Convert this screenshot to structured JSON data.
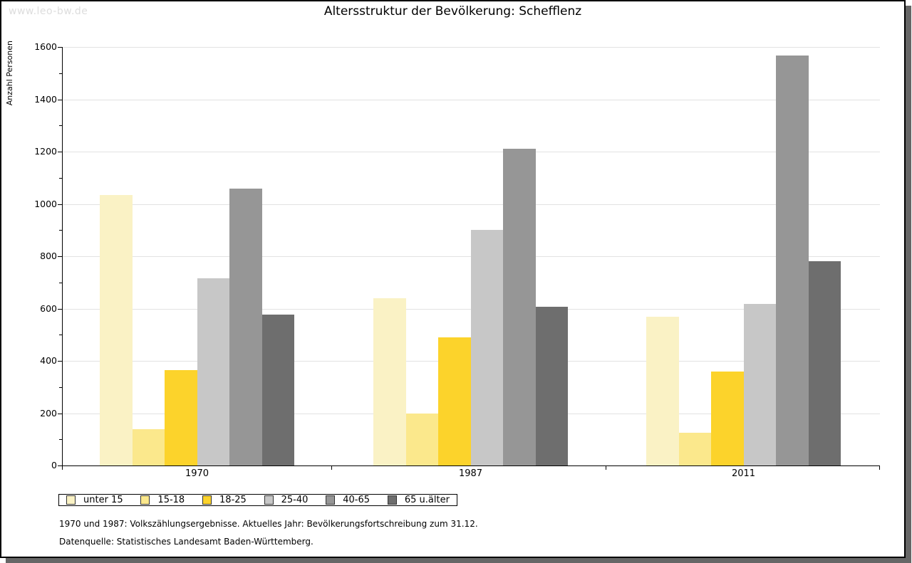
{
  "watermark": "www.leo-bw.de",
  "title": "Altersstruktur der Bevölkerung: Schefflenz",
  "footnotes": {
    "line1": "1970 und 1987: Volkszählungsergebnisse. Aktuelles Jahr: Bevölkerungsfortschreibung zum 31.12.",
    "line2": "Datenquelle: Statistisches Landesamt Baden-Württemberg."
  },
  "colors": {
    "axis": "#000000",
    "gridline": "#e2e2e2",
    "watermark": "#dddddd",
    "frame_border": "#000000",
    "frame_shadow": "#666666"
  },
  "chart_data": {
    "type": "bar",
    "title": "Altersstruktur der Bevölkerung: Schefflenz",
    "xlabel": "",
    "ylabel": "Anzahl Personen",
    "ylim": [
      0,
      1600
    ],
    "ytick_step": 200,
    "ytick_minor_step": 100,
    "grid": true,
    "legend_position": "bottom",
    "categories": [
      "1970",
      "1987",
      "2011"
    ],
    "series": [
      {
        "name": "unter 15",
        "color": "#faf2c5",
        "values": [
          1035,
          640,
          570
        ]
      },
      {
        "name": "15-18",
        "color": "#fbe88c",
        "values": [
          140,
          200,
          125
        ]
      },
      {
        "name": "18-25",
        "color": "#fcd32b",
        "values": [
          365,
          490,
          360
        ]
      },
      {
        "name": "25-40",
        "color": "#c7c7c7",
        "values": [
          715,
          900,
          617
        ]
      },
      {
        "name": "40-65",
        "color": "#969696",
        "values": [
          1058,
          1210,
          1566
        ]
      },
      {
        "name": "65 u.älter",
        "color": "#6e6e6e",
        "values": [
          578,
          608,
          782
        ]
      }
    ]
  }
}
